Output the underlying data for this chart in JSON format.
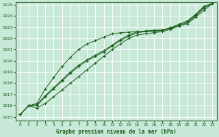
{
  "title": "Graphe pression niveau de la mer (hPa)",
  "bg_color": "#c8e8d8",
  "grid_color": "#ffffff",
  "line_color": "#1a5c1a",
  "x_ticks": [
    0,
    1,
    2,
    3,
    4,
    5,
    6,
    7,
    8,
    9,
    10,
    11,
    12,
    13,
    14,
    15,
    16,
    17,
    18,
    19,
    20,
    21,
    22,
    23
  ],
  "y_min": 1015,
  "y_max": 1025,
  "y_ticks": [
    1015,
    1016,
    1017,
    1018,
    1019,
    1020,
    1021,
    1022,
    1023,
    1024,
    1025
  ],
  "series": [
    [
      1015.2,
      1016.0,
      1015.8,
      1016.2,
      1016.8,
      1017.4,
      1018.0,
      1018.6,
      1019.2,
      1019.8,
      1020.4,
      1021.0,
      1021.5,
      1022.0,
      1022.3,
      1022.4,
      1022.5,
      1022.6,
      1022.8,
      1023.1,
      1023.4,
      1024.0,
      1024.7,
      1025.1
    ],
    [
      1015.2,
      1016.0,
      1016.0,
      1016.8,
      1017.5,
      1018.2,
      1018.9,
      1019.5,
      1020.0,
      1020.4,
      1020.8,
      1021.3,
      1021.8,
      1022.2,
      1022.5,
      1022.6,
      1022.6,
      1022.7,
      1022.9,
      1023.2,
      1023.5,
      1024.1,
      1024.8,
      1025.1
    ],
    [
      1015.2,
      1016.0,
      1016.1,
      1016.9,
      1017.6,
      1018.3,
      1019.0,
      1019.6,
      1020.1,
      1020.5,
      1020.9,
      1021.4,
      1021.9,
      1022.3,
      1022.6,
      1022.65,
      1022.7,
      1022.75,
      1022.95,
      1023.25,
      1023.55,
      1024.15,
      1024.85,
      1025.1
    ],
    [
      1015.2,
      1016.0,
      1016.2,
      1017.5,
      1018.5,
      1019.5,
      1020.3,
      1021.0,
      1021.5,
      1021.8,
      1022.1,
      1022.4,
      1022.5,
      1022.55,
      1022.6,
      1022.65,
      1022.7,
      1022.75,
      1022.9,
      1023.1,
      1023.3,
      1023.9,
      1024.5,
      1025.1
    ]
  ],
  "figsize": [
    3.2,
    2.0
  ],
  "dpi": 100
}
